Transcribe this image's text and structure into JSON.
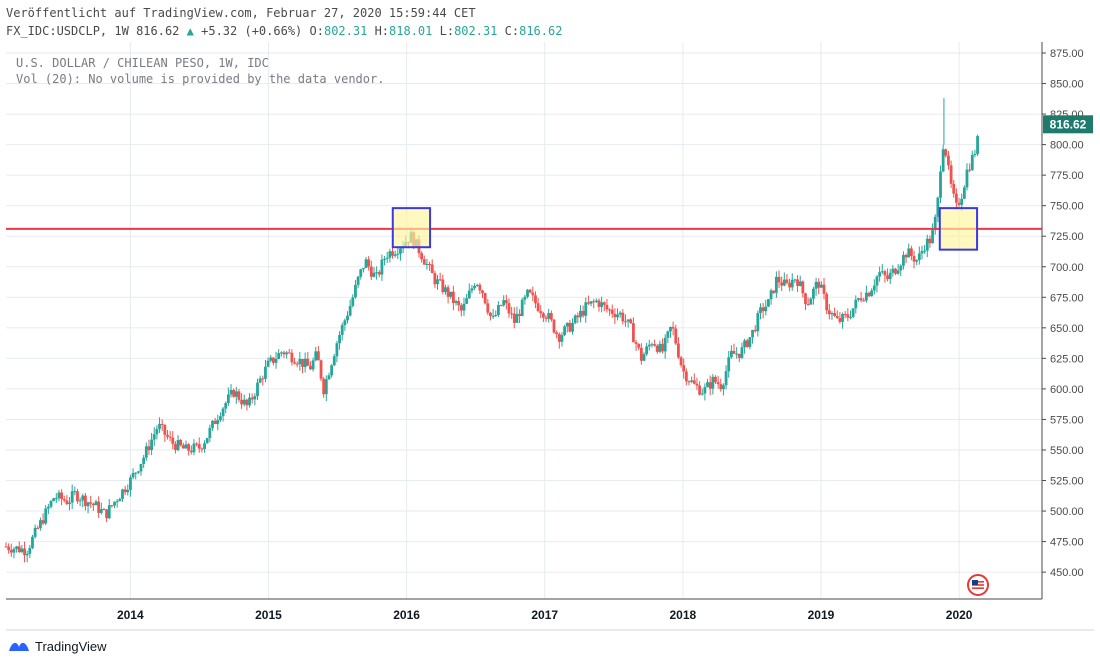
{
  "header": {
    "published": "Veröffentlicht auf TradingView.com, Februar 27, 2020 15:59:44 CET",
    "symbol": "FX_IDC:USDCLP, 1W",
    "last": "816.62",
    "arrow": "▲",
    "change": "+5.32 (+0.66%)",
    "o_label": "O:",
    "o": "802.31",
    "h_label": "H:",
    "h": "818.01",
    "l_label": "L:",
    "l": "802.31",
    "c_label": "C:",
    "c": "816.62"
  },
  "legend": {
    "line1": "U.S. DOLLAR / CHILEAN PESO, 1W, IDC",
    "line2": "Vol (20): No volume is provided by the data vendor."
  },
  "footer": {
    "brand": "TradingView",
    "logo_icon": "tradingview-logo-icon",
    "flag_icon": "us-flag-icon"
  },
  "colors": {
    "up": "#26a69a",
    "down": "#ef5350",
    "hline": "#f23645",
    "box_fill": "#fff59d",
    "box_stroke": "#3a3adf",
    "grid": "#e6ebf0",
    "price_badge": "#1f7a6d"
  },
  "chart_data": {
    "type": "candlestick",
    "title": "U.S. DOLLAR / CHILEAN PESO, 1W, IDC",
    "x_ticks": [
      "2014",
      "2015",
      "2016",
      "2017",
      "2018",
      "2019",
      "2020"
    ],
    "x_range": [
      2013.1,
      2020.6
    ],
    "y_ticks": [
      "450.00",
      "475.00",
      "500.00",
      "525.00",
      "550.00",
      "575.00",
      "600.00",
      "625.00",
      "650.00",
      "675.00",
      "700.00",
      "725.00",
      "750.00",
      "775.00",
      "800.00",
      "825.00",
      "850.00",
      "875.00"
    ],
    "ylim": [
      428,
      884
    ],
    "last_price": 816.62,
    "horizontal_line": 731,
    "highlight_boxes": [
      {
        "x": [
          2015.9,
          2016.17
        ],
        "y": [
          716,
          748
        ]
      },
      {
        "x": [
          2019.86,
          2020.13
        ],
        "y": [
          714,
          748
        ]
      }
    ],
    "price_path": [
      [
        2013.1,
        471
      ],
      [
        2013.25,
        468
      ],
      [
        2013.35,
        490
      ],
      [
        2013.45,
        512
      ],
      [
        2013.55,
        508
      ],
      [
        2013.6,
        514
      ],
      [
        2013.75,
        504
      ],
      [
        2013.82,
        497
      ],
      [
        2013.9,
        510
      ],
      [
        2014.0,
        525
      ],
      [
        2014.1,
        545
      ],
      [
        2014.2,
        570
      ],
      [
        2014.3,
        556
      ],
      [
        2014.4,
        550
      ],
      [
        2014.5,
        552
      ],
      [
        2014.55,
        560
      ],
      [
        2014.65,
        582
      ],
      [
        2014.75,
        598
      ],
      [
        2014.85,
        585
      ],
      [
        2014.95,
        610
      ],
      [
        2015.0,
        620
      ],
      [
        2015.1,
        631
      ],
      [
        2015.2,
        625
      ],
      [
        2015.3,
        617
      ],
      [
        2015.35,
        628
      ],
      [
        2015.4,
        600
      ],
      [
        2015.5,
        640
      ],
      [
        2015.6,
        671
      ],
      [
        2015.65,
        690
      ],
      [
        2015.7,
        705
      ],
      [
        2015.78,
        690
      ],
      [
        2015.85,
        710
      ],
      [
        2015.93,
        715
      ],
      [
        2016.03,
        725
      ],
      [
        2016.1,
        712
      ],
      [
        2016.2,
        690
      ],
      [
        2016.3,
        678
      ],
      [
        2016.4,
        663
      ],
      [
        2016.5,
        690
      ],
      [
        2016.55,
        680
      ],
      [
        2016.62,
        655
      ],
      [
        2016.7,
        672
      ],
      [
        2016.78,
        655
      ],
      [
        2016.88,
        678
      ],
      [
        2016.95,
        668
      ],
      [
        2017.02,
        660
      ],
      [
        2017.1,
        643
      ],
      [
        2017.2,
        653
      ],
      [
        2017.3,
        667
      ],
      [
        2017.38,
        672
      ],
      [
        2017.45,
        665
      ],
      [
        2017.55,
        661
      ],
      [
        2017.62,
        650
      ],
      [
        2017.7,
        625
      ],
      [
        2017.78,
        640
      ],
      [
        2017.85,
        630
      ],
      [
        2017.92,
        652
      ],
      [
        2018.0,
        615
      ],
      [
        2018.08,
        603
      ],
      [
        2018.15,
        598
      ],
      [
        2018.22,
        607
      ],
      [
        2018.28,
        603
      ],
      [
        2018.35,
        628
      ],
      [
        2018.42,
        630
      ],
      [
        2018.5,
        645
      ],
      [
        2018.57,
        665
      ],
      [
        2018.62,
        670
      ],
      [
        2018.68,
        690
      ],
      [
        2018.75,
        684
      ],
      [
        2018.82,
        692
      ],
      [
        2018.9,
        670
      ],
      [
        2018.98,
        688
      ],
      [
        2019.05,
        665
      ],
      [
        2019.12,
        655
      ],
      [
        2019.2,
        660
      ],
      [
        2019.28,
        675
      ],
      [
        2019.35,
        680
      ],
      [
        2019.42,
        695
      ],
      [
        2019.48,
        690
      ],
      [
        2019.55,
        700
      ],
      [
        2019.62,
        712
      ],
      [
        2019.7,
        705
      ],
      [
        2019.75,
        718
      ],
      [
        2019.8,
        723
      ],
      [
        2019.84,
        745
      ],
      [
        2019.87,
        790
      ],
      [
        2019.89,
        805
      ],
      [
        2019.92,
        780
      ],
      [
        2019.95,
        760
      ],
      [
        2019.98,
        748
      ],
      [
        2020.02,
        760
      ],
      [
        2020.06,
        780
      ],
      [
        2020.1,
        790
      ],
      [
        2020.13,
        800
      ],
      [
        2020.15,
        816
      ]
    ]
  }
}
